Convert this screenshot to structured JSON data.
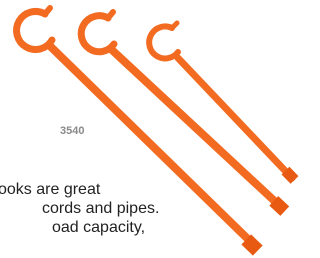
{
  "product_label": "3540",
  "description": [
    "ooks are great",
    "cords and pipes.",
    "oad capacity,"
  ]
}
